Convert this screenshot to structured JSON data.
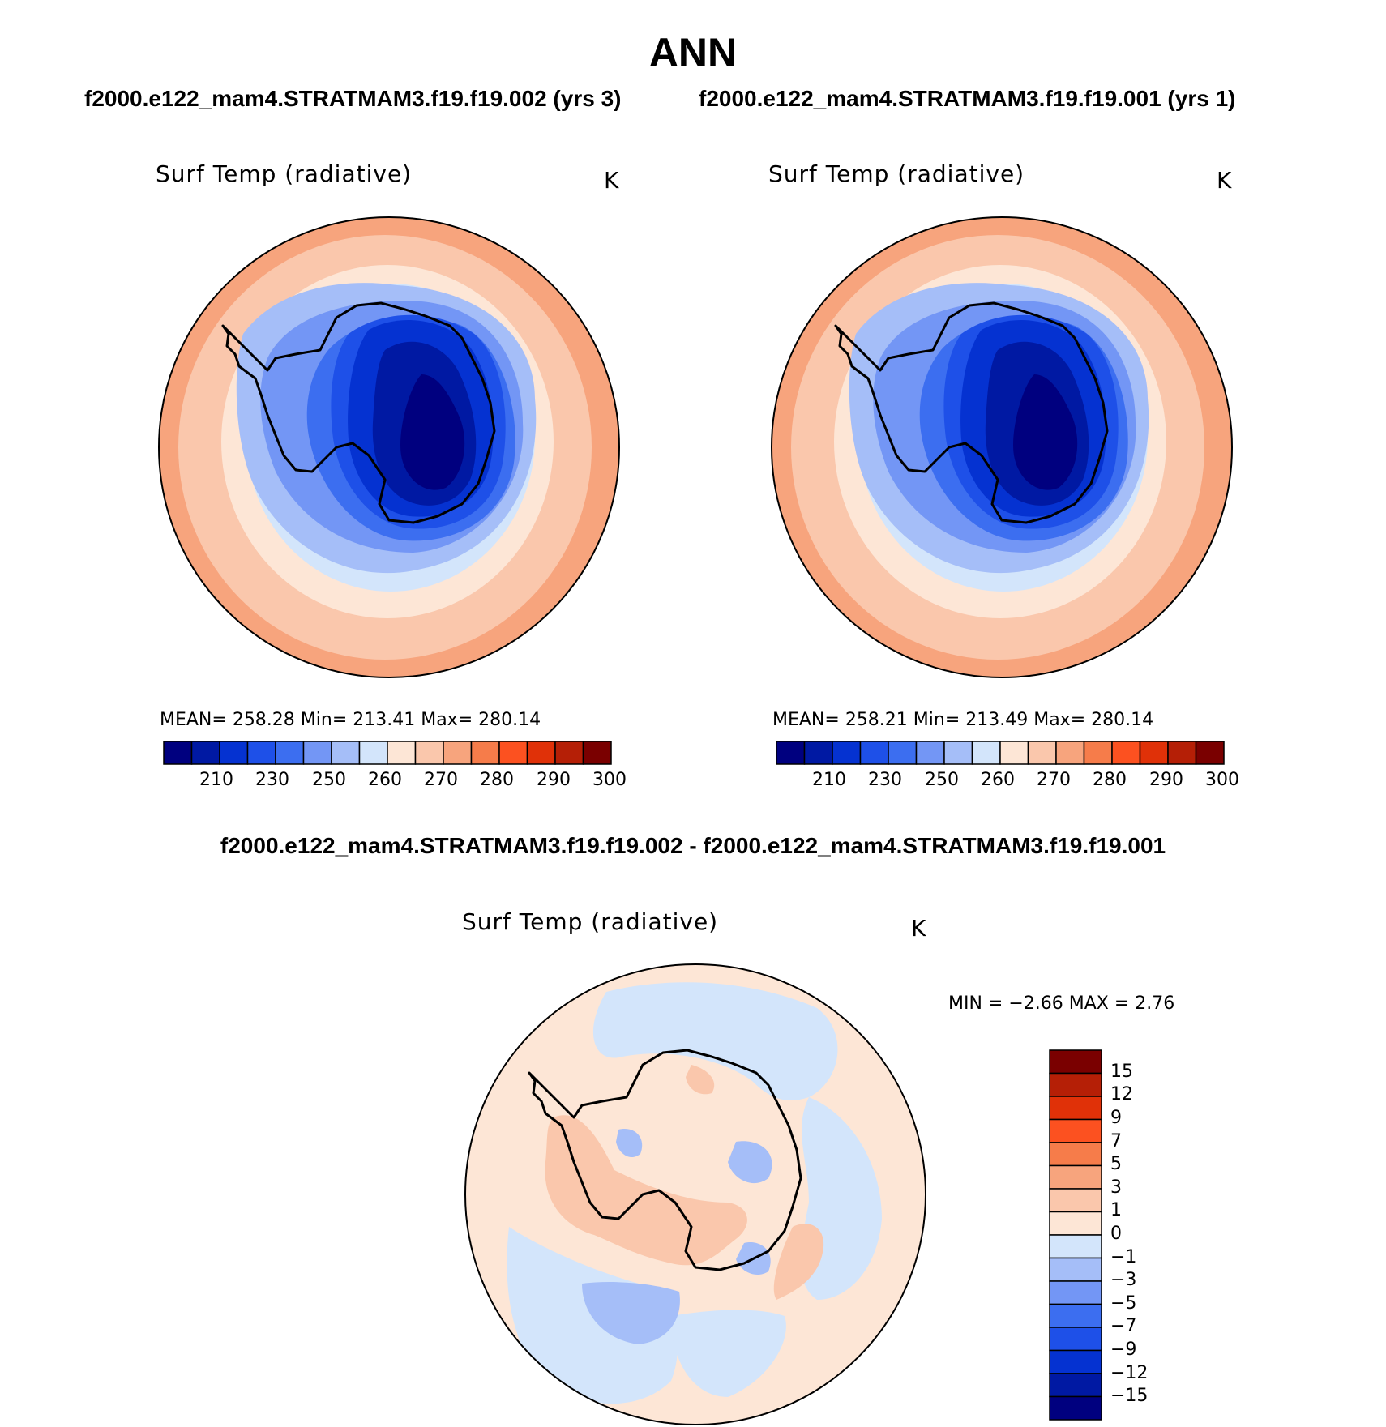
{
  "page": {
    "title": "ANN",
    "case_left": "f2000.e122_mam4.STRATMAM3.f19.f19.002 (yrs 3)",
    "case_right": "f2000.e122_mam4.STRATMAM3.f19.f19.001 (yrs 1)",
    "diff_title": "f2000.e122_mam4.STRATMAM3.f19.f19.002 - f2000.e122_mam4.STRATMAM3.f19.f19.001"
  },
  "panels": [
    {
      "variable": "Surf Temp (radiative)",
      "units": "K",
      "stats": "MEAN=  258.28   Min=  213.41   Max=  280.14",
      "colorbar_labels": [
        "210",
        "230",
        "250",
        "260",
        "270",
        "280",
        "290",
        "300"
      ]
    },
    {
      "variable": "Surf Temp (radiative)",
      "units": "K",
      "stats": "MEAN=  258.21   Min=  213.49   Max=  280.14",
      "colorbar_labels": [
        "210",
        "230",
        "250",
        "260",
        "270",
        "280",
        "290",
        "300"
      ]
    }
  ],
  "diff_panel": {
    "variable": "Surf Temp (radiative)",
    "units": "K",
    "stats": "MIN =   −2.66  MAX =     2.76",
    "colorbar_labels": [
      "15",
      "12",
      "9",
      "7",
      "5",
      "3",
      "1",
      "0",
      "−1",
      "−3",
      "−5",
      "−7",
      "−9",
      "−12",
      "−15"
    ]
  },
  "colors": {
    "abs_scale": [
      "#00007f",
      "#0019a3",
      "#0532d1",
      "#1e50e8",
      "#3c6ef0",
      "#7396f5",
      "#a5bef8",
      "#d3e5fb",
      "#fde6d6",
      "#fac7ac",
      "#f7a47d",
      "#f67c4a",
      "#fc5120",
      "#e03108",
      "#b51f06",
      "#7a0000"
    ],
    "diff_scale": [
      "#7a0000",
      "#b51f06",
      "#e03108",
      "#fc5120",
      "#f67c4a",
      "#f7a47d",
      "#fac7ac",
      "#fde6d6",
      "#d3e5fb",
      "#a5bef8",
      "#7396f5",
      "#3c6ef0",
      "#1e50e8",
      "#0532d1",
      "#0019a3",
      "#00007f"
    ]
  }
}
